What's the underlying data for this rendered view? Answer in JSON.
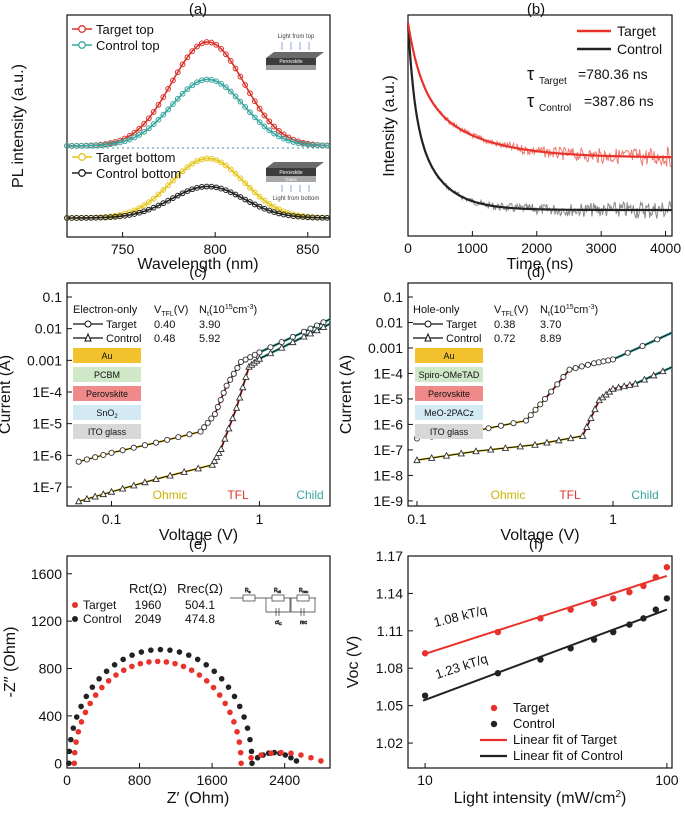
{
  "chart_data": [
    {
      "id": "a",
      "panel_label": "(a)",
      "type": "line",
      "xlabel": "Wavelength (nm)",
      "ylabel": "PL intensity (a.u.)",
      "xlim": [
        720,
        862
      ],
      "xticks": [
        "750",
        "800",
        "850"
      ],
      "xtick_values": [
        750,
        800,
        850
      ],
      "upper": {
        "legend": [
          "Target top",
          "Control top"
        ],
        "series": [
          {
            "name": "Target top",
            "color": "#d9342b",
            "peak_x": 796,
            "peak": 1.0,
            "width": 29
          },
          {
            "name": "Control top",
            "color": "#3aa6a0",
            "peak_x": 796,
            "peak": 0.64,
            "width": 29
          }
        ],
        "inset": {
          "caption": "Light from top",
          "layer_labels": [
            "Perovskite"
          ]
        }
      },
      "lower": {
        "legend": [
          "Target bottom",
          "Control bottom"
        ],
        "series": [
          {
            "name": "Target bottom",
            "color": "#e6c619",
            "peak_x": 796,
            "peak": 0.85,
            "width": 29
          },
          {
            "name": "Control bottom",
            "color": "#222222",
            "peak_x": 796,
            "peak": 0.45,
            "width": 29
          }
        ],
        "inset": {
          "caption": "Light from bottom",
          "layer_labels": [
            "Perovskite",
            "Glass"
          ]
        }
      }
    },
    {
      "id": "b",
      "panel_label": "(b)",
      "type": "line",
      "xlabel": "Time (ns)",
      "ylabel": "Intensity (a.u.)",
      "xlim": [
        0,
        4100
      ],
      "xticks": [
        "0",
        "1000",
        "2000",
        "3000",
        "4000"
      ],
      "xtick_values": [
        0,
        1000,
        2000,
        3000,
        4000
      ],
      "legend": [
        "Target",
        "Control"
      ],
      "series": [
        {
          "name": "Target",
          "color": "#e8322b",
          "tau": 780.36
        },
        {
          "name": "Control",
          "color": "#222222",
          "tau": 387.86
        }
      ],
      "annotations": {
        "tau_target_symbol": "τ",
        "tau_target_sub": "Target",
        "tau_target_value": "=780.36 ns",
        "tau_control_symbol": "τ",
        "tau_control_sub": "Control",
        "tau_control_value": "=387.86 ns"
      }
    },
    {
      "id": "c",
      "panel_label": "(c)",
      "type": "scatter",
      "xscale": "log",
      "yscale": "log",
      "xlabel": "Voltage (V)",
      "ylabel": "Current (A)",
      "xlim": [
        0.05,
        3.0
      ],
      "ylim_exp": [
        -7.6,
        -1
      ],
      "xticks": [
        "0.1",
        "1"
      ],
      "xtick_values": [
        0.1,
        1
      ],
      "yticks": [
        "0.1",
        "0.01",
        "0.001",
        "1E-4",
        "1E-5",
        "1E-6",
        "1E-7"
      ],
      "ytick_exps": [
        -1,
        -2,
        -3,
        -4,
        -5,
        -6,
        -7
      ],
      "table": {
        "title": "Electron-only",
        "headers": [
          "V",
          "TFL",
          "(V)",
          "N",
          "t",
          "(10",
          "15",
          "cm",
          "-3",
          ")"
        ],
        "rows": [
          {
            "name": "Target",
            "vtfl": "0.40",
            "nt": "3.90"
          },
          {
            "name": "Control",
            "vtfl": "0.48",
            "nt": "5.92"
          }
        ]
      },
      "device_stack": [
        {
          "label": "Au",
          "color": "#f2c12e"
        },
        {
          "label": "PCBM",
          "color": "#cfe8c8"
        },
        {
          "label": "Perovskite",
          "color": "#f08a8a"
        },
        {
          "label": "SnO",
          "sub": "2",
          "color": "#d3e9f4"
        },
        {
          "label": "ITO glass",
          "color": "#d8d8d8"
        }
      ],
      "region_labels": [
        {
          "text": "Ohmic",
          "color": "#c9b300"
        },
        {
          "text": "TFL",
          "color": "#d9342b"
        },
        {
          "text": "Child",
          "color": "#3aa6a0"
        }
      ],
      "series": [
        {
          "name": "Target",
          "marker": "circle",
          "points": [
            [
              0.06,
              -6.2
            ],
            [
              0.1,
              -5.92
            ],
            [
              0.2,
              -5.6
            ],
            [
              0.4,
              -5.25
            ],
            [
              0.5,
              -4.7
            ],
            [
              0.6,
              -3.8
            ],
            [
              0.75,
              -3.05
            ],
            [
              1.0,
              -2.75
            ],
            [
              2.0,
              -2.1
            ],
            [
              3.0,
              -1.7
            ]
          ]
        },
        {
          "name": "Control",
          "marker": "triangle",
          "points": [
            [
              0.06,
              -7.45
            ],
            [
              0.1,
              -7.15
            ],
            [
              0.2,
              -6.75
            ],
            [
              0.48,
              -6.3
            ],
            [
              0.55,
              -5.8
            ],
            [
              0.7,
              -4.5
            ],
            [
              0.85,
              -3.2
            ],
            [
              1.0,
              -2.95
            ],
            [
              2.0,
              -2.25
            ],
            [
              3.0,
              -1.85
            ]
          ]
        }
      ]
    },
    {
      "id": "d",
      "panel_label": "(d)",
      "type": "scatter",
      "xscale": "log",
      "yscale": "log",
      "xlabel": "Voltage (V)",
      "ylabel": "Current (A)",
      "xlim": [
        0.09,
        2.0
      ],
      "ylim_exp": [
        -9.2,
        -1
      ],
      "xticks": [
        "0.1",
        "1"
      ],
      "xtick_values": [
        0.1,
        1
      ],
      "yticks": [
        "0.1",
        "0.01",
        "0.001",
        "1E-4",
        "1E-5",
        "1E-6",
        "1E-7",
        "1E-8",
        "1E-9"
      ],
      "ytick_exps": [
        -1,
        -2,
        -3,
        -4,
        -5,
        -6,
        -7,
        -8,
        -9
      ],
      "table": {
        "title": "Hole-only",
        "rows": [
          {
            "name": "Target",
            "vtfl": "0.38",
            "nt": "3.70"
          },
          {
            "name": "Control",
            "vtfl": "0.72",
            "nt": "8.89"
          }
        ]
      },
      "device_stack": [
        {
          "label": "Au",
          "color": "#f2c12e"
        },
        {
          "label": "Spiro-OMeTAD",
          "color": "#cfe8c8"
        },
        {
          "label": "Perovskite",
          "color": "#f08a8a"
        },
        {
          "label": "MeO-2PACz",
          "color": "#d3e9f4"
        },
        {
          "label": "ITO glass",
          "color": "#d8d8d8"
        }
      ],
      "region_labels": [
        {
          "text": "Ohmic",
          "color": "#c9b300"
        },
        {
          "text": "TFL",
          "color": "#d9342b"
        },
        {
          "text": "Child",
          "color": "#3aa6a0"
        }
      ],
      "series": [
        {
          "name": "Target",
          "marker": "circle",
          "points": [
            [
              0.1,
              -6.55
            ],
            [
              0.2,
              -6.25
            ],
            [
              0.36,
              -5.85
            ],
            [
              0.45,
              -5.0
            ],
            [
              0.6,
              -3.85
            ],
            [
              0.8,
              -3.6
            ],
            [
              1.0,
              -3.45
            ],
            [
              2.0,
              -2.4
            ]
          ]
        },
        {
          "name": "Control",
          "marker": "triangle",
          "points": [
            [
              0.1,
              -7.4
            ],
            [
              0.2,
              -7.05
            ],
            [
              0.4,
              -6.8
            ],
            [
              0.7,
              -6.45
            ],
            [
              0.85,
              -5.05
            ],
            [
              1.0,
              -4.6
            ],
            [
              1.3,
              -4.4
            ],
            [
              2.0,
              -3.75
            ]
          ]
        }
      ]
    },
    {
      "id": "e",
      "panel_label": "(e)",
      "type": "scatter",
      "xlabel": "Z′ (Ohm)",
      "ylabel": "-Z′′ (Ohm)",
      "xlim": [
        0,
        2900
      ],
      "ylim": [
        -40,
        1750
      ],
      "xticks": [
        "0",
        "800",
        "1600",
        "2400"
      ],
      "xtick_values": [
        0,
        800,
        1600,
        2400
      ],
      "yticks": [
        "0",
        "400",
        "800",
        "1200",
        "1600"
      ],
      "ytick_values": [
        0,
        400,
        800,
        1200,
        1600
      ],
      "table_headers": {
        "rct": "Rct(Ω)",
        "rrec": "Rrec(Ω)"
      },
      "series": [
        {
          "name": "Target",
          "color": "#e8322b",
          "rct": "1960",
          "rrec": "504.1",
          "arc_center": 1000,
          "arc_r": 920,
          "arc_h": 860,
          "tail_end": 2800
        },
        {
          "name": "Control",
          "color": "#222222",
          "rct": "2049",
          "rrec": "474.8",
          "arc_center": 1030,
          "arc_r": 1010,
          "arc_h": 960,
          "tail_end": 2530
        }
      ],
      "circuit_labels": [
        "R",
        "s",
        "R",
        "ct",
        "R",
        "rec",
        "C",
        "ct",
        "C",
        "rec"
      ]
    },
    {
      "id": "f",
      "panel_label": "(f)",
      "type": "scatter",
      "xscale": "log",
      "xlabel": "Light intensity (mW/cm",
      "xlabel_sup": "2",
      "xlabel_end": ")",
      "ylabel": "Voc (V)",
      "xlim": [
        8.5,
        105
      ],
      "ylim": [
        1.0,
        1.17
      ],
      "xticks": [
        "10",
        "100"
      ],
      "xtick_values": [
        10,
        100
      ],
      "yticks": [
        "1.02",
        "1.05",
        "1.08",
        "1.11",
        "1.14",
        "1.17"
      ],
      "ytick_values": [
        1.02,
        1.05,
        1.08,
        1.11,
        1.14,
        1.17
      ],
      "slopes": [
        {
          "text": "1.08 kT/q",
          "color": "#222222"
        },
        {
          "text": "1.23 kT/q",
          "color": "#222222"
        }
      ],
      "legend": [
        "Target",
        "Control",
        "Linear fit of Target",
        "Linear fit of Control"
      ],
      "series": [
        {
          "name": "Target",
          "color": "#e8322b",
          "x": [
            10,
            20,
            30,
            40,
            50,
            60,
            70,
            80,
            90,
            100
          ],
          "y": [
            1.092,
            1.109,
            1.12,
            1.127,
            1.132,
            1.136,
            1.141,
            1.146,
            1.153,
            1.161
          ],
          "fit": [
            [
              9.8,
              1.091
            ],
            [
              100,
              1.154
            ]
          ]
        },
        {
          "name": "Control",
          "color": "#222222",
          "x": [
            10,
            20,
            30,
            40,
            50,
            60,
            70,
            80,
            90,
            100
          ],
          "y": [
            1.058,
            1.076,
            1.087,
            1.096,
            1.103,
            1.109,
            1.115,
            1.12,
            1.127,
            1.136
          ],
          "fit": [
            [
              9.8,
              1.054
            ],
            [
              100,
              1.127
            ]
          ]
        }
      ]
    }
  ]
}
